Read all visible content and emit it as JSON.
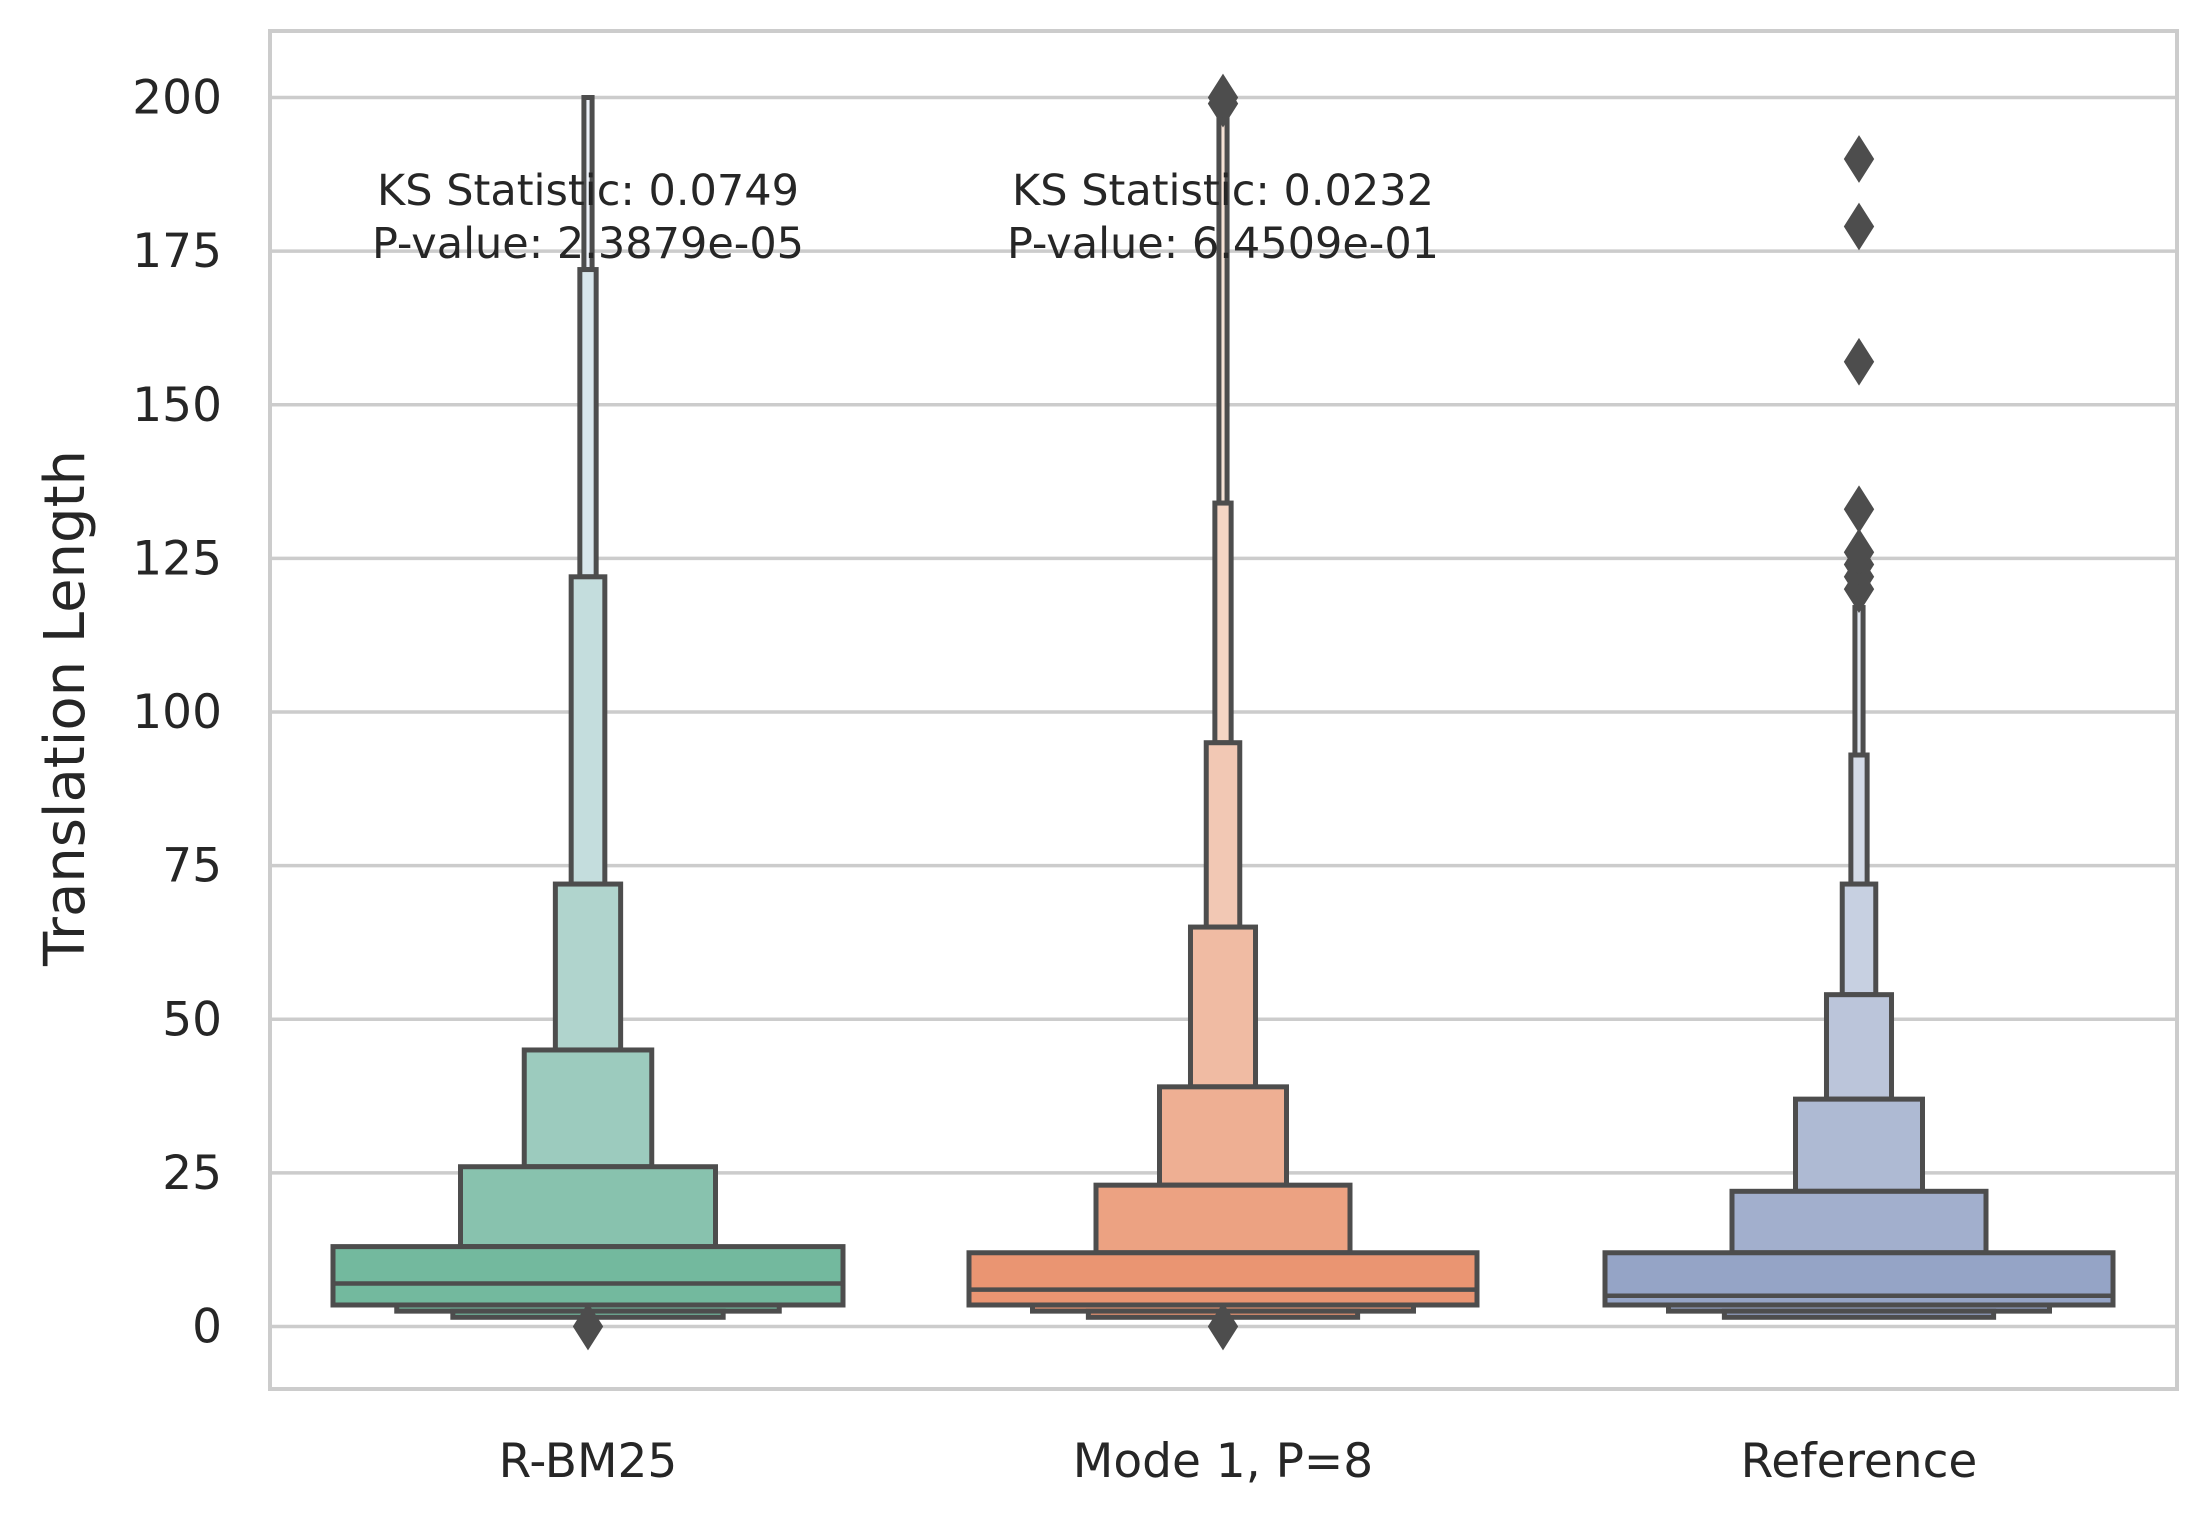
{
  "chart_data": {
    "type": "boxenplot",
    "title": "",
    "xlabel": "",
    "ylabel": "Translation Length",
    "ylim": [
      -10,
      210
    ],
    "yticks": [
      0,
      25,
      50,
      75,
      100,
      125,
      150,
      175,
      200
    ],
    "ytick_labels": [
      "0",
      "25",
      "50",
      "75",
      "100",
      "125",
      "150",
      "175",
      "200"
    ],
    "grid": true,
    "categories": [
      "R-BM25",
      "Mode 1, P=8",
      "Reference"
    ],
    "series": [
      {
        "name": "R-BM25",
        "median": 7,
        "boxes": [
          {
            "low": 3.5,
            "high": 13
          },
          {
            "low": 13,
            "high": 26
          },
          {
            "low": 26,
            "high": 45
          },
          {
            "low": 45,
            "high": 72
          },
          {
            "low": 72,
            "high": 122
          },
          {
            "low": 122,
            "high": 172
          },
          {
            "low": 172,
            "high": 200
          }
        ],
        "lower_boxes": [
          {
            "low": 2.5,
            "high": 3.5
          },
          {
            "low": 1.5,
            "high": 2.5
          }
        ],
        "outliers": [
          0
        ]
      },
      {
        "name": "Mode 1, P=8",
        "median": 6,
        "boxes": [
          {
            "low": 3.5,
            "high": 12
          },
          {
            "low": 12,
            "high": 23
          },
          {
            "low": 23,
            "high": 39
          },
          {
            "low": 39,
            "high": 65
          },
          {
            "low": 65,
            "high": 95
          },
          {
            "low": 95,
            "high": 134
          },
          {
            "low": 134,
            "high": 198
          }
        ],
        "lower_boxes": [
          {
            "low": 2.5,
            "high": 3.5
          },
          {
            "low": 1.5,
            "high": 2.5
          }
        ],
        "outliers": [
          0,
          199,
          200
        ]
      },
      {
        "name": "Reference",
        "median": 5,
        "boxes": [
          {
            "low": 3.5,
            "high": 12
          },
          {
            "low": 12,
            "high": 22
          },
          {
            "low": 22,
            "high": 37
          },
          {
            "low": 37,
            "high": 54
          },
          {
            "low": 54,
            "high": 72
          },
          {
            "low": 72,
            "high": 93
          },
          {
            "low": 93,
            "high": 117
          }
        ],
        "lower_boxes": [
          {
            "low": 2.5,
            "high": 3.5
          },
          {
            "low": 1.5,
            "high": 2.5
          }
        ],
        "outliers": [
          120,
          122,
          124,
          126,
          133,
          157,
          179,
          190
        ]
      }
    ],
    "annotations": [
      {
        "category": "R-BM25",
        "line1": "KS Statistic: 0.0749",
        "line2": "P-value: 2.3879e-05"
      },
      {
        "category": "Mode 1, P=8",
        "line1": "KS Statistic: 0.0232",
        "line2": "P-value: 6.4509e-01"
      }
    ],
    "colors": {
      "R-BM25": [
        "#73b99e",
        "#88c2ae",
        "#9ccbbe",
        "#b0d4cd",
        "#c4dddd",
        "#d8e6ec",
        "#ecf0f7"
      ],
      "Mode 1, P=8": [
        "#ea9572",
        "#eca282",
        "#eeaf93",
        "#f0bba3",
        "#f2c8b4",
        "#f4d5c4",
        "#f6e2d5"
      ],
      "Reference": [
        "#95a4c6",
        "#a2afcd",
        "#aebad3",
        "#bbc5da",
        "#c7d0e1",
        "#d4dbe7",
        "#e0e6ee"
      ],
      "edge": "#4d4d4d",
      "grid": "#cccccc",
      "spine": "#cccccc",
      "text": "#262626"
    }
  }
}
